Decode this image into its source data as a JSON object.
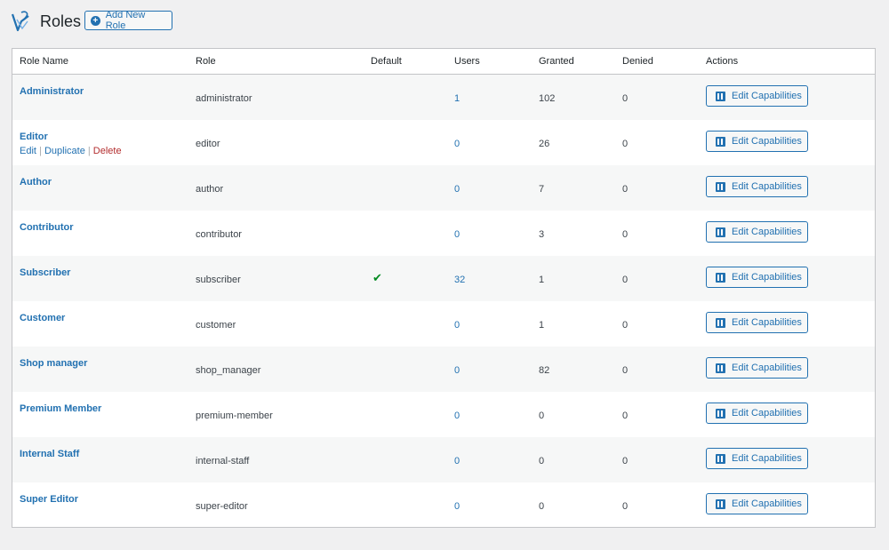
{
  "header": {
    "title": "Roles",
    "add_button_label": "Add New Role"
  },
  "table": {
    "columns": [
      "Role Name",
      "Role",
      "Default",
      "Users",
      "Granted",
      "Denied",
      "Actions"
    ],
    "default_mark": "✔",
    "edit_label": "Edit Capabilities",
    "row_actions": {
      "edit": "Edit",
      "duplicate": "Duplicate",
      "delete": "Delete",
      "separator": " | "
    },
    "rows": [
      {
        "name": "Administrator",
        "slug": "administrator",
        "default": "",
        "users": "1",
        "granted": "102",
        "denied": "0"
      },
      {
        "name": "Editor",
        "slug": "editor",
        "default": "",
        "users": "0",
        "granted": "26",
        "denied": "0"
      },
      {
        "name": "Author",
        "slug": "author",
        "default": "",
        "users": "0",
        "granted": "7",
        "denied": "0"
      },
      {
        "name": "Contributor",
        "slug": "contributor",
        "default": "",
        "users": "0",
        "granted": "3",
        "denied": "0"
      },
      {
        "name": "Subscriber",
        "slug": "subscriber",
        "default": "✔",
        "users": "32",
        "granted": "1",
        "denied": "0"
      },
      {
        "name": "Customer",
        "slug": "customer",
        "default": "",
        "users": "0",
        "granted": "1",
        "denied": "0"
      },
      {
        "name": "Shop manager",
        "slug": "shop_manager",
        "default": "",
        "users": "0",
        "granted": "82",
        "denied": "0"
      },
      {
        "name": "Premium Member",
        "slug": "premium-member",
        "default": "",
        "users": "0",
        "granted": "0",
        "denied": "0"
      },
      {
        "name": "Internal Staff",
        "slug": "internal-staff",
        "default": "",
        "users": "0",
        "granted": "0",
        "denied": "0"
      },
      {
        "name": "Super Editor",
        "slug": "super-editor",
        "default": "",
        "users": "0",
        "granted": "0",
        "denied": "0"
      }
    ]
  },
  "colors": {
    "accent": "#2271b1",
    "danger": "#b32d2e",
    "check": "#008a20"
  },
  "icons": {
    "logo": "capabilities-logo-icon",
    "add": "plus-circle-icon",
    "edit": "capabilities-icon"
  }
}
